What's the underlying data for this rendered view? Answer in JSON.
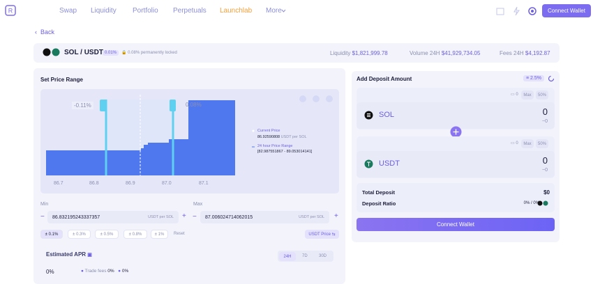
{
  "nav": {
    "links": [
      "Swap",
      "Liquidity",
      "Portfolio",
      "Perpetuals",
      "Launchlab",
      "More"
    ],
    "button": "Connect Wallet"
  },
  "back": "Back",
  "pool": {
    "pair": "SOL / USDT",
    "fee": "0.01%",
    "locked": "0.08% permanently locked",
    "stats": [
      {
        "label": "Liquidity",
        "value": "$1,821,999.78"
      },
      {
        "label": "Volume 24H",
        "value": "$41,929,734.05"
      },
      {
        "label": "Fees 24H",
        "value": "$4,192.87"
      }
    ]
  },
  "range": {
    "title": "Set Price Range",
    "low_pct": "-0.11%",
    "high_pct": "0.08%",
    "ticks": [
      "86.7",
      "86.8",
      "86.9",
      "87.0",
      "87.1"
    ],
    "legend": {
      "current_label": "Current Price",
      "current_value": "86.92590808",
      "current_unit": "USDT per SOL",
      "range_label": "24 hour Price Range",
      "range_value": "[82.987551867 - 89.053014141]"
    },
    "min": {
      "label": "Min",
      "value": "86.832195243337357",
      "unit": "USDT per SOL"
    },
    "max": {
      "label": "Max",
      "value": "87.006024714062015",
      "unit": "USDT per SOL"
    },
    "presets": [
      "± 0.1%",
      "± 0.3%",
      "± 0.5%",
      "± 0.8%",
      "± 1%"
    ],
    "reset": "Reset",
    "price_toggle": "USDT Price ⇆"
  },
  "apr": {
    "title": "Estimated APR",
    "tabs": [
      "24H",
      "7D",
      "30D"
    ],
    "value": "0%",
    "breakdown": [
      {
        "label": "Trade fees",
        "value": "0%"
      },
      {
        "label": null,
        "value": "0%"
      }
    ]
  },
  "deposit": {
    "title": "Add Deposit Amount",
    "slippage": "2.5%",
    "tokens": [
      {
        "balance": "0",
        "max": "Max",
        "half": "50%",
        "symbol": "SOL",
        "amount": "0",
        "usd": "~0"
      },
      {
        "balance": "0",
        "max": "Max",
        "half": "50%",
        "symbol": "USDT",
        "amount": "0",
        "usd": "~0"
      }
    ],
    "total_label": "Total Deposit",
    "total_value": "$0",
    "ratio_label": "Deposit Ratio",
    "ratio_value": "0% / 0%",
    "button": "Connect Wallet"
  }
}
